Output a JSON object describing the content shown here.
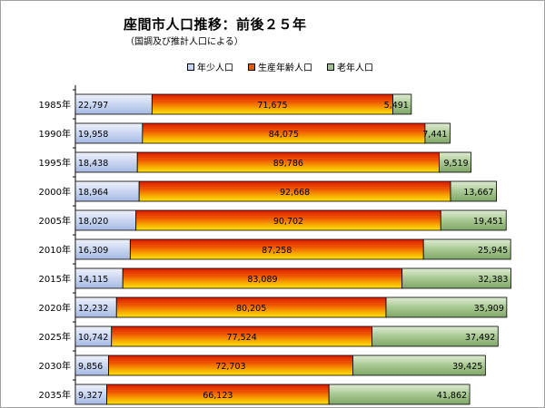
{
  "title": "座間市人口推移：前後２５年",
  "subtitle": "（国調及び推計人口による）",
  "chart_data": {
    "type": "bar",
    "orientation": "horizontal",
    "stacked": true,
    "categories": [
      "1985年",
      "1990年",
      "1995年",
      "2000年",
      "2005年",
      "2010年",
      "2015年",
      "2020年",
      "2025年",
      "2030年",
      "2035年"
    ],
    "series": [
      {
        "name": "年少人口",
        "color": "#c6d4f0",
        "values": [
          22797,
          19958,
          18438,
          18964,
          18020,
          16309,
          14115,
          12232,
          10742,
          9856,
          9327
        ]
      },
      {
        "name": "生産年齢人口",
        "color": "#e85a00",
        "values": [
          71675,
          84075,
          89786,
          92668,
          90702,
          87258,
          83089,
          80205,
          77524,
          72703,
          66123
        ]
      },
      {
        "name": "老年人口",
        "color": "#9fc08a",
        "values": [
          5491,
          7441,
          9519,
          13667,
          19451,
          25945,
          32383,
          35909,
          37492,
          39425,
          41862
        ]
      }
    ],
    "value_labels": [
      [
        "22,797",
        "71,675",
        "5,491"
      ],
      [
        "19,958",
        "84,075",
        "7,441"
      ],
      [
        "18,438",
        "89,786",
        "9,519"
      ],
      [
        "18,964",
        "92,668",
        "13,667"
      ],
      [
        "18,020",
        "90,702",
        "19,451"
      ],
      [
        "16,309",
        "87,258",
        "25,945"
      ],
      [
        "14,115",
        "83,089",
        "32,383"
      ],
      [
        "12,232",
        "80,205",
        "35,909"
      ],
      [
        "10,742",
        "77,524",
        "37,492"
      ],
      [
        "9,856",
        "72,703",
        "39,425"
      ],
      [
        "9,327",
        "66,123",
        "41,862"
      ]
    ],
    "legend_position": "top",
    "grid": false
  }
}
